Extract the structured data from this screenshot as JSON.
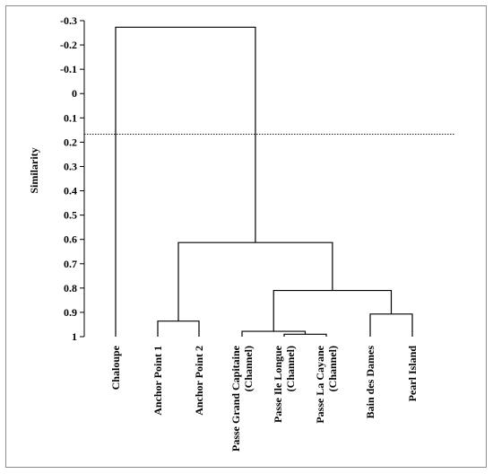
{
  "chart_data": {
    "type": "dendrogram",
    "ylabel": "Similarity",
    "ylim": [
      -0.3,
      1
    ],
    "y_ticks": [
      "-0.3",
      "-0.2",
      "-0.1",
      "0",
      "0.1",
      "0.2",
      "0.3",
      "0.4",
      "0.5",
      "0.6",
      "0.7",
      "0.8",
      "0.9",
      "1"
    ],
    "cut_line": 0.167,
    "leaves": [
      [
        "Chaloupe"
      ],
      [
        "Anchor Point 1"
      ],
      [
        "Anchor Point 2"
      ],
      [
        "Passe Grand Capitaine",
        "(Channel)"
      ],
      [
        "Passe Ile Longue",
        "(Channel)"
      ],
      [
        "Passe La Cayane",
        "(Channel)"
      ],
      [
        "Bain des Dames"
      ],
      [
        "Pearl Island"
      ]
    ],
    "merges": [
      {
        "a": "L5",
        "b": "L6",
        "height": 0.99
      },
      {
        "a": "L4",
        "b": "M0",
        "height": 0.978
      },
      {
        "a": "L2",
        "b": "L3",
        "height": 0.936
      },
      {
        "a": "L7",
        "b": "L8",
        "height": 0.907
      },
      {
        "a": "M1",
        "b": "M3",
        "height": 0.81
      },
      {
        "a": "M2",
        "b": "M4",
        "height": 0.613
      },
      {
        "a": "L1",
        "b": "M5",
        "height": -0.273
      }
    ]
  }
}
